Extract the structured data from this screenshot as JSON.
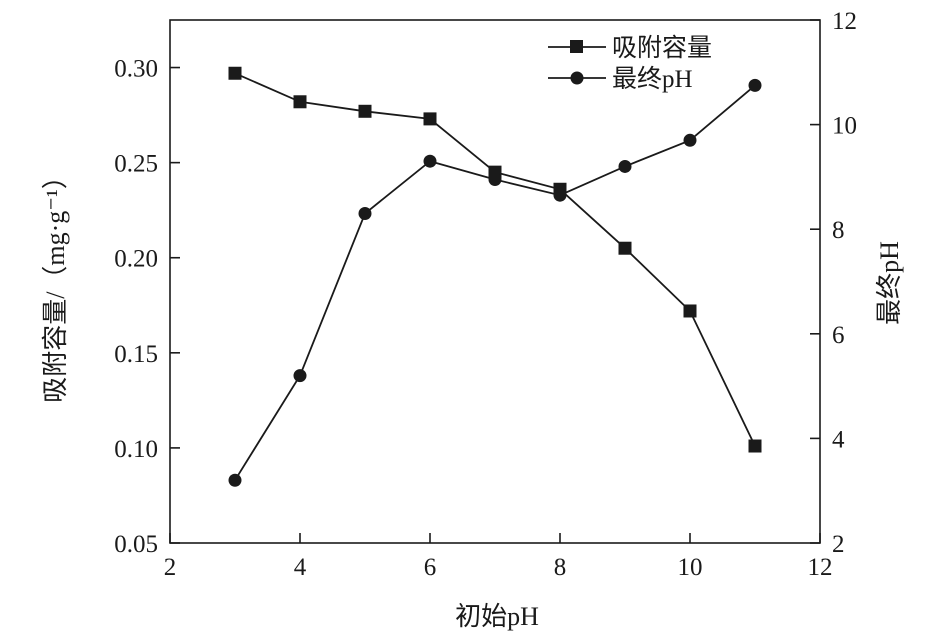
{
  "chart_data": {
    "type": "line",
    "title": "",
    "xlabel": "初始pH",
    "ylabel_left": "吸附容量/（mg·g⁻¹）",
    "ylabel_right": "最终pH",
    "xlim": [
      2,
      12
    ],
    "xticks": [
      2,
      4,
      6,
      8,
      10,
      12
    ],
    "ylim_left": [
      0.05,
      0.325
    ],
    "yticks_left": [
      "0.05",
      "0.10",
      "0.15",
      "0.20",
      "0.25",
      "0.30"
    ],
    "ylim_right": [
      2,
      12
    ],
    "yticks_right": [
      2,
      4,
      6,
      8,
      10,
      12
    ],
    "grid": false,
    "legend_position": "top-right",
    "series": [
      {
        "name": "吸附容量",
        "axis": "left",
        "marker": "square",
        "x": [
          3,
          4,
          5,
          6,
          7,
          8,
          9,
          10,
          11
        ],
        "values": [
          0.297,
          0.282,
          0.277,
          0.273,
          0.245,
          0.236,
          0.205,
          0.172,
          0.101
        ]
      },
      {
        "name": "最终pH",
        "axis": "right",
        "marker": "circle",
        "x": [
          3,
          4,
          5,
          6,
          7,
          8,
          9,
          10,
          11
        ],
        "values": [
          3.2,
          5.2,
          8.3,
          9.3,
          8.95,
          8.65,
          9.2,
          9.7,
          10.75
        ]
      }
    ]
  }
}
